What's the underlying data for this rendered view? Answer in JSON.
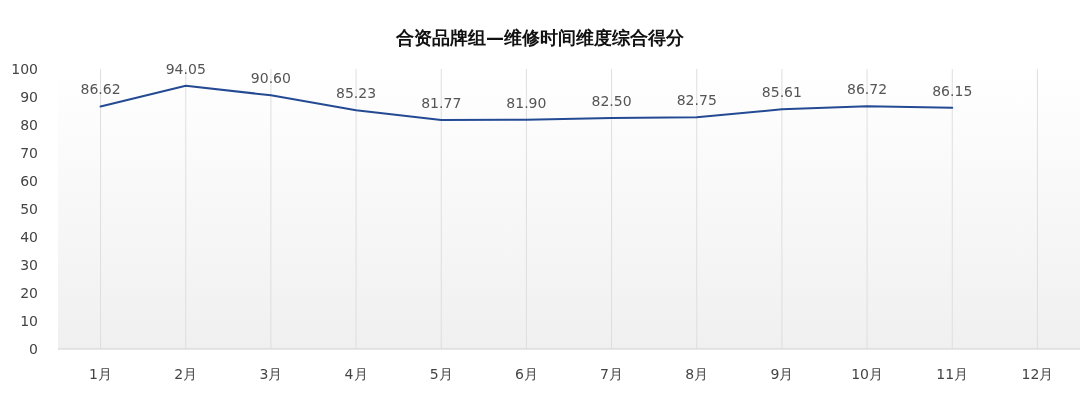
{
  "chart_data": {
    "type": "line",
    "title": "合资品牌组—维修时间维度综合得分",
    "categories": [
      "1月",
      "2月",
      "3月",
      "4月",
      "5月",
      "6月",
      "7月",
      "8月",
      "9月",
      "10月",
      "11月",
      "12月"
    ],
    "values": [
      86.62,
      94.05,
      90.6,
      85.23,
      81.77,
      81.9,
      82.5,
      82.75,
      85.61,
      86.72,
      86.15,
      null
    ],
    "value_labels": [
      "86.62",
      "94.05",
      "90.60",
      "85.23",
      "81.77",
      "81.90",
      "82.50",
      "82.75",
      "85.61",
      "86.72",
      "86.15",
      null
    ],
    "color": "#244a94",
    "ylim": [
      0,
      100
    ],
    "yticks": [
      0,
      10,
      20,
      30,
      40,
      50,
      60,
      70,
      80,
      90,
      100
    ],
    "grid": "x"
  }
}
